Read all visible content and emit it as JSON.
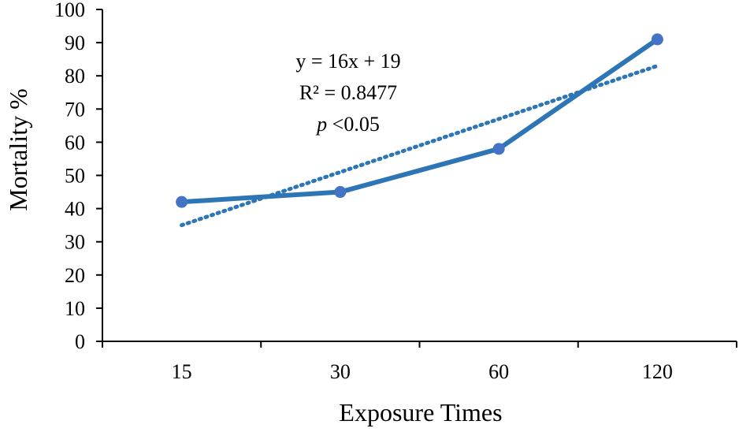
{
  "chart_data": {
    "type": "line",
    "title": "",
    "xlabel": "Exposure Times",
    "ylabel": "Mortality %",
    "categories": [
      "15",
      "30",
      "60",
      "120"
    ],
    "ylim": [
      0,
      100
    ],
    "yticks": [
      0,
      10,
      20,
      30,
      40,
      50,
      60,
      70,
      80,
      90,
      100
    ],
    "series": [
      {
        "values": [
          42,
          45,
          58,
          91
        ],
        "color": "#2e75b6",
        "style": "solid",
        "marker": "circle"
      }
    ],
    "trendline": {
      "type": "linear",
      "values": [
        35,
        51,
        67,
        83
      ],
      "color": "#2e75b6",
      "style": "dotted"
    },
    "annotation": {
      "equation": "y = 16x + 19",
      "r_squared": "R² = 0.8477",
      "p_symbol": "p",
      "p_value": " <0.05"
    },
    "legend": "none",
    "grid": false
  }
}
